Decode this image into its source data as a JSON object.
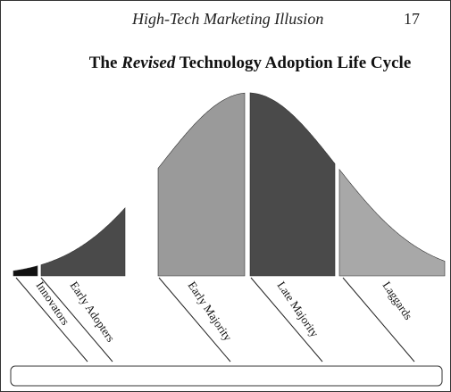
{
  "header": {
    "title": "High-Tech Marketing Illusion",
    "page": "17"
  },
  "figure": {
    "title_before": "The",
    "title_emphasis": "Revised",
    "title_after": "Technology Adoption Life Cycle",
    "segments": [
      {
        "label": "Innovators"
      },
      {
        "label": "Early Adopters"
      },
      {
        "label": "Early Majority"
      },
      {
        "label": "Late Majority"
      },
      {
        "label": "Laggards"
      }
    ]
  }
}
